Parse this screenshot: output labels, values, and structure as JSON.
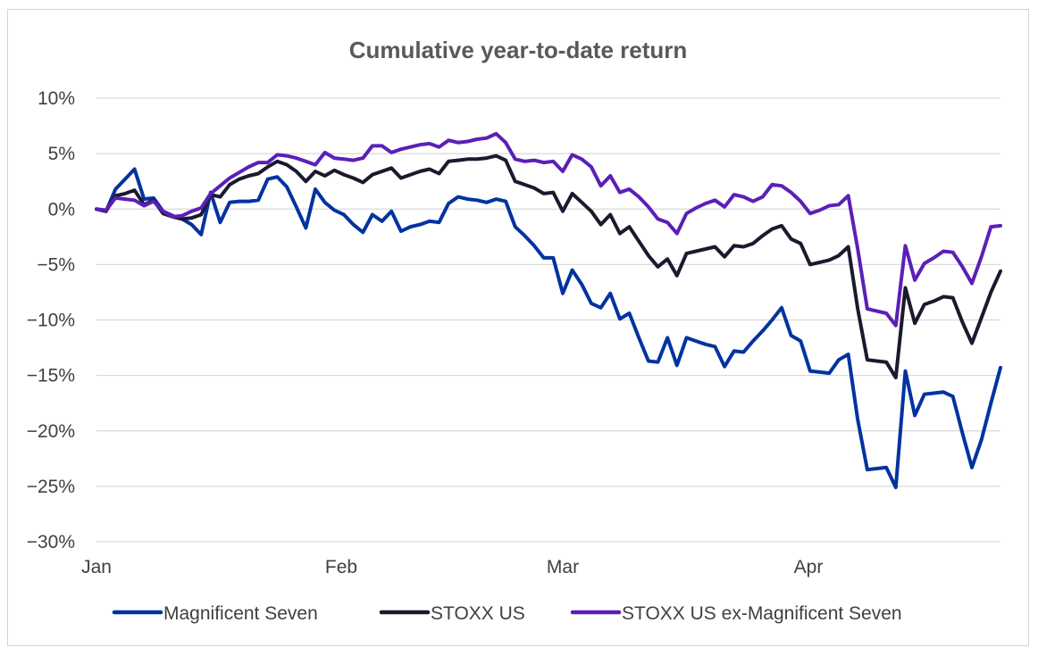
{
  "chart_data": {
    "type": "line",
    "title": "Cumulative year-to-date return",
    "xlabel": "",
    "ylabel": "",
    "ylim": [
      -30,
      10
    ],
    "yticks": [
      10,
      5,
      0,
      -5,
      -10,
      -15,
      -20,
      -25,
      -30
    ],
    "ytick_labels": [
      "10%",
      "5%",
      "0%",
      "−5%",
      "−10%",
      "−15%",
      "−20%",
      "−25%",
      "−30%"
    ],
    "x_month_labels": [
      "Jan",
      "Feb",
      "Mar",
      "Apr"
    ],
    "grid": true,
    "legend_position": "bottom",
    "series": [
      {
        "name": "Magnificent Seven",
        "color": "#0033a0",
        "values": [
          0.0,
          -0.2,
          1.8,
          2.7,
          3.6,
          0.9,
          1.0,
          -0.2,
          -0.6,
          -0.9,
          -1.4,
          -2.3,
          1.5,
          -1.2,
          0.6,
          0.7,
          0.7,
          0.8,
          2.7,
          2.9,
          2.0,
          0.2,
          -1.7,
          1.8,
          0.6,
          -0.1,
          -0.5,
          -1.4,
          -2.1,
          -0.5,
          -1.1,
          -0.2,
          -2.0,
          -1.6,
          -1.4,
          -1.1,
          -1.2,
          0.5,
          1.1,
          0.9,
          0.8,
          0.6,
          0.9,
          0.7,
          -1.6,
          -2.4,
          -3.3,
          -4.4,
          -4.4,
          -7.6,
          -5.5,
          -6.8,
          -8.5,
          -8.9,
          -7.6,
          -9.9,
          -9.4,
          -11.6,
          -13.7,
          -13.8,
          -11.6,
          -14.1,
          -11.6,
          -11.9,
          -12.2,
          -12.4,
          -14.2,
          -12.8,
          -12.9,
          -11.9,
          -11.0,
          -10.0,
          -8.9,
          -11.4,
          -11.9,
          -14.6,
          -14.7,
          -14.8,
          -13.6,
          -13.1,
          -19.0,
          -23.5,
          -23.4,
          -23.3,
          -25.1,
          -14.6,
          -18.6,
          -16.7,
          -16.6,
          -16.5,
          -16.9,
          -20.2,
          -23.3,
          -20.8,
          -17.5,
          -14.3
        ]
      },
      {
        "name": "STOXX US",
        "color": "#1a1a2e",
        "values": [
          0.0,
          -0.2,
          1.2,
          1.4,
          1.7,
          0.4,
          0.8,
          -0.4,
          -0.7,
          -0.9,
          -0.8,
          -0.5,
          1.3,
          1.1,
          2.2,
          2.7,
          3.0,
          3.2,
          3.8,
          4.3,
          4.0,
          3.4,
          2.5,
          3.4,
          3.0,
          3.5,
          3.1,
          2.8,
          2.4,
          3.1,
          3.4,
          3.7,
          2.8,
          3.1,
          3.4,
          3.6,
          3.2,
          4.3,
          4.4,
          4.5,
          4.5,
          4.6,
          4.8,
          4.4,
          2.5,
          2.2,
          1.9,
          1.4,
          1.5,
          -0.2,
          1.4,
          0.6,
          -0.2,
          -1.4,
          -0.5,
          -2.2,
          -1.6,
          -2.9,
          -4.2,
          -5.2,
          -4.5,
          -6.0,
          -4.0,
          -3.8,
          -3.6,
          -3.4,
          -4.3,
          -3.3,
          -3.4,
          -3.1,
          -2.4,
          -1.8,
          -1.5,
          -2.7,
          -3.1,
          -5.0,
          -4.8,
          -4.6,
          -4.2,
          -3.4,
          -9.0,
          -13.6,
          -13.7,
          -13.8,
          -15.2,
          -7.1,
          -10.3,
          -8.6,
          -8.3,
          -7.9,
          -8.0,
          -10.2,
          -12.1,
          -9.8,
          -7.5,
          -5.6
        ]
      },
      {
        "name": "STOXX US ex-Magnificent Seven",
        "color": "#5b1fb8",
        "values": [
          0.0,
          -0.1,
          1.0,
          0.9,
          0.8,
          0.3,
          0.7,
          -0.2,
          -0.7,
          -0.6,
          -0.2,
          0.1,
          1.4,
          2.1,
          2.8,
          3.3,
          3.8,
          4.2,
          4.2,
          4.9,
          4.8,
          4.6,
          4.3,
          4.0,
          5.1,
          4.6,
          4.5,
          4.4,
          4.6,
          5.7,
          5.7,
          5.1,
          5.4,
          5.6,
          5.8,
          5.9,
          5.6,
          6.2,
          6.0,
          6.1,
          6.3,
          6.4,
          6.8,
          6.0,
          4.5,
          4.3,
          4.4,
          4.2,
          4.3,
          3.4,
          4.9,
          4.5,
          3.8,
          2.1,
          3.0,
          1.5,
          1.8,
          1.1,
          0.2,
          -0.9,
          -1.2,
          -2.2,
          -0.4,
          0.1,
          0.5,
          0.8,
          0.2,
          1.3,
          1.1,
          0.7,
          1.1,
          2.2,
          2.1,
          1.5,
          0.7,
          -0.4,
          -0.1,
          0.3,
          0.4,
          1.2,
          -3.6,
          -9.0,
          -9.2,
          -9.4,
          -10.5,
          -3.3,
          -6.4,
          -4.9,
          -4.4,
          -3.8,
          -3.9,
          -5.2,
          -6.7,
          -4.3,
          -1.6,
          -1.5
        ]
      }
    ]
  }
}
